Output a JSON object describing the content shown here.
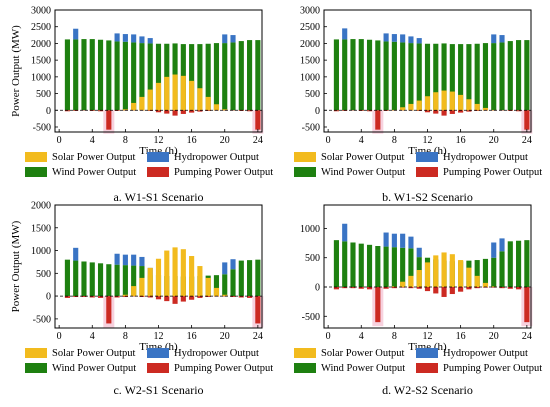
{
  "colors": {
    "solar": "#F2BB1E",
    "hydro": "#3A74C4",
    "wind": "#1E8010",
    "pump": "#CC2A22",
    "axis": "#000000"
  },
  "legend": {
    "solar": "Solar Power Output",
    "hydro": "Hydropower Output",
    "wind": "Wind Power Output",
    "pump": "Pumping Power Output"
  },
  "chart_data": [
    {
      "type": "bar",
      "caption": "a. W1-S1 Scenario",
      "xlabel": "Time (h)",
      "ylabel": "Power Output (MW)",
      "xlim": [
        -0.5,
        24.5
      ],
      "ylim": [
        -650,
        3000
      ],
      "yticks": [
        -500,
        0,
        500,
        1000,
        1500,
        2000,
        2500,
        3000
      ],
      "xticks": [
        0,
        4,
        8,
        12,
        16,
        20,
        24
      ],
      "x": [
        1,
        2,
        3,
        4,
        5,
        6,
        7,
        8,
        9,
        10,
        11,
        12,
        13,
        14,
        15,
        16,
        17,
        18,
        19,
        20,
        21,
        22,
        23,
        24
      ],
      "series": [
        {
          "name": "Wind Power Output",
          "key": "wind",
          "values": [
            2120,
            2120,
            2130,
            2130,
            2110,
            2090,
            2060,
            2050,
            2030,
            2010,
            2000,
            1990,
            1990,
            2000,
            1980,
            1980,
            1980,
            1990,
            2010,
            2010,
            2030,
            2070,
            2100,
            2100
          ]
        },
        {
          "name": "Solar Power Output",
          "key": "solar",
          "values": [
            0,
            0,
            0,
            0,
            0,
            0,
            0,
            30,
            220,
            400,
            620,
            820,
            1000,
            1070,
            1030,
            880,
            660,
            400,
            180,
            30,
            0,
            0,
            0,
            0
          ]
        },
        {
          "name": "Hydropower Output",
          "key": "hydro",
          "values": [
            0,
            320,
            0,
            0,
            0,
            0,
            240,
            230,
            240,
            200,
            160,
            0,
            0,
            0,
            0,
            0,
            0,
            0,
            0,
            260,
            220,
            0,
            0,
            0
          ]
        },
        {
          "name": "Pumping Power Output",
          "key": "pump",
          "values": [
            -30,
            -20,
            -10,
            -20,
            -30,
            -580,
            -20,
            -10,
            -10,
            -10,
            -20,
            -60,
            -100,
            -160,
            -110,
            -70,
            -40,
            -20,
            -10,
            -10,
            -10,
            -20,
            -30,
            -580
          ]
        }
      ]
    },
    {
      "type": "bar",
      "caption": "b. W1-S2 Scenario",
      "xlabel": "Time (h)",
      "ylabel": "",
      "xlim": [
        -0.5,
        24.5
      ],
      "ylim": [
        -650,
        3000
      ],
      "yticks": [
        -500,
        0,
        500,
        1000,
        1500,
        2000,
        2500,
        3000
      ],
      "xticks": [
        0,
        4,
        8,
        12,
        16,
        20,
        24
      ],
      "x": [
        1,
        2,
        3,
        4,
        5,
        6,
        7,
        8,
        9,
        10,
        11,
        12,
        13,
        14,
        15,
        16,
        17,
        18,
        19,
        20,
        21,
        22,
        23,
        24
      ],
      "series": [
        {
          "name": "Wind Power Output",
          "key": "wind",
          "values": [
            2120,
            2120,
            2130,
            2130,
            2110,
            2090,
            2060,
            2050,
            2030,
            2010,
            2000,
            1990,
            1990,
            2000,
            1980,
            1980,
            1980,
            1990,
            2010,
            2010,
            2030,
            2070,
            2100,
            2100
          ]
        },
        {
          "name": "Solar Power Output",
          "key": "solar",
          "values": [
            0,
            0,
            0,
            0,
            0,
            0,
            0,
            10,
            90,
            190,
            290,
            420,
            540,
            590,
            560,
            460,
            330,
            190,
            70,
            10,
            0,
            0,
            0,
            0
          ]
        },
        {
          "name": "Hydropower Output",
          "key": "hydro",
          "values": [
            0,
            330,
            0,
            0,
            0,
            0,
            240,
            230,
            240,
            200,
            160,
            0,
            0,
            0,
            0,
            0,
            0,
            0,
            0,
            260,
            220,
            0,
            0,
            0
          ]
        },
        {
          "name": "Pumping Power Output",
          "key": "pump",
          "values": [
            -30,
            -20,
            -10,
            -20,
            -30,
            -580,
            -20,
            -10,
            -10,
            -10,
            -20,
            -60,
            -100,
            -160,
            -110,
            -70,
            -40,
            -20,
            -10,
            -10,
            -10,
            -20,
            -30,
            -580
          ]
        }
      ]
    },
    {
      "type": "bar",
      "caption": "c. W2-S1 Scenario",
      "xlabel": "Time (h)",
      "ylabel": "Power Output (MW)",
      "xlim": [
        -0.5,
        24.5
      ],
      "ylim": [
        -700,
        2000
      ],
      "yticks": [
        -500,
        0,
        500,
        1000,
        1500,
        2000
      ],
      "xticks": [
        0,
        4,
        8,
        12,
        16,
        20,
        24
      ],
      "x": [
        1,
        2,
        3,
        4,
        5,
        6,
        7,
        8,
        9,
        10,
        11,
        12,
        13,
        14,
        15,
        16,
        17,
        18,
        19,
        20,
        21,
        22,
        23,
        24
      ],
      "series": [
        {
          "name": "Wind Power Output",
          "key": "wind",
          "values": [
            800,
            780,
            760,
            740,
            720,
            700,
            690,
            680,
            670,
            660,
            460,
            460,
            440,
            440,
            430,
            430,
            440,
            450,
            460,
            480,
            590,
            780,
            790,
            800
          ]
        },
        {
          "name": "Solar Power Output",
          "key": "solar",
          "values": [
            0,
            0,
            0,
            0,
            0,
            0,
            0,
            30,
            220,
            400,
            620,
            820,
            1000,
            1070,
            1030,
            880,
            660,
            400,
            180,
            30,
            0,
            0,
            0,
            0
          ]
        },
        {
          "name": "Hydropower Output",
          "key": "hydro",
          "values": [
            0,
            280,
            0,
            0,
            0,
            0,
            240,
            230,
            240,
            200,
            160,
            0,
            0,
            0,
            0,
            0,
            0,
            0,
            0,
            260,
            220,
            0,
            0,
            0
          ]
        },
        {
          "name": "Pumping Power Output",
          "key": "pump",
          "values": [
            -40,
            -20,
            -20,
            -30,
            -40,
            -600,
            -30,
            -20,
            -10,
            -20,
            -30,
            -70,
            -110,
            -170,
            -120,
            -80,
            -40,
            -20,
            -10,
            -10,
            -20,
            -30,
            -40,
            -600
          ]
        }
      ]
    },
    {
      "type": "bar",
      "caption": "d. W2-S2 Scenario",
      "xlabel": "Time (h)",
      "ylabel": "",
      "xlim": [
        -0.5,
        24.5
      ],
      "ylim": [
        -700,
        1400
      ],
      "yticks": [
        -500,
        0,
        500,
        1000
      ],
      "xticks": [
        0,
        4,
        8,
        12,
        16,
        20,
        24
      ],
      "x": [
        1,
        2,
        3,
        4,
        5,
        6,
        7,
        8,
        9,
        10,
        11,
        12,
        13,
        14,
        15,
        16,
        17,
        18,
        19,
        20,
        21,
        22,
        23,
        24
      ],
      "series": [
        {
          "name": "Wind Power Output",
          "key": "wind",
          "values": [
            800,
            780,
            760,
            740,
            720,
            700,
            690,
            680,
            670,
            660,
            510,
            500,
            470,
            450,
            440,
            440,
            450,
            460,
            480,
            500,
            610,
            780,
            790,
            800
          ]
        },
        {
          "name": "Solar Power Output",
          "key": "solar",
          "values": [
            0,
            0,
            0,
            0,
            0,
            0,
            0,
            10,
            90,
            190,
            290,
            420,
            540,
            590,
            560,
            460,
            330,
            190,
            70,
            10,
            0,
            0,
            0,
            0
          ]
        },
        {
          "name": "Hydropower Output",
          "key": "hydro",
          "values": [
            0,
            300,
            0,
            0,
            0,
            0,
            240,
            230,
            240,
            200,
            160,
            0,
            0,
            0,
            0,
            0,
            0,
            0,
            0,
            260,
            220,
            0,
            0,
            0
          ]
        },
        {
          "name": "Pumping Power Output",
          "key": "pump",
          "values": [
            -40,
            -20,
            -20,
            -30,
            -40,
            -600,
            -30,
            -20,
            -10,
            -20,
            -30,
            -70,
            -110,
            -170,
            -120,
            -80,
            -40,
            -20,
            -10,
            -10,
            -20,
            -30,
            -40,
            -600
          ]
        }
      ]
    }
  ]
}
